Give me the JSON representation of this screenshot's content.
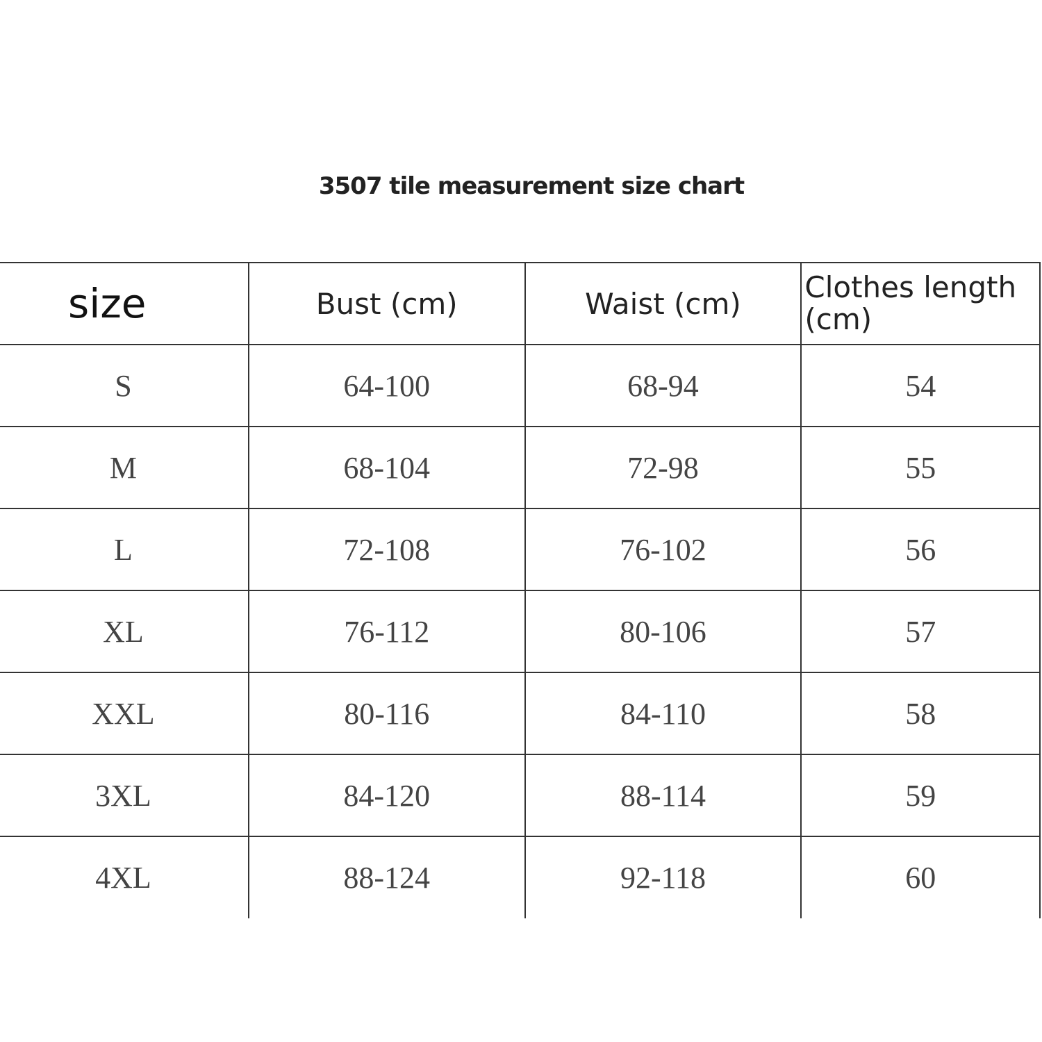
{
  "title": "3507 tile measurement size chart",
  "table": {
    "header": [
      "size",
      "Bust (cm)",
      "Waist (cm)",
      "Clothes length (cm)"
    ],
    "rows": [
      [
        "S",
        "64-100",
        "68-94",
        "54"
      ],
      [
        "M",
        "68-104",
        "72-98",
        "55"
      ],
      [
        "L",
        "72-108",
        "76-102",
        "56"
      ],
      [
        "XL",
        "76-112",
        "80-106",
        "57"
      ],
      [
        "XXL",
        "80-116",
        "84-110",
        "58"
      ],
      [
        "3XL",
        "84-120",
        "88-114",
        "59"
      ],
      [
        "4XL",
        "88-124",
        "92-118",
        "60"
      ]
    ]
  }
}
